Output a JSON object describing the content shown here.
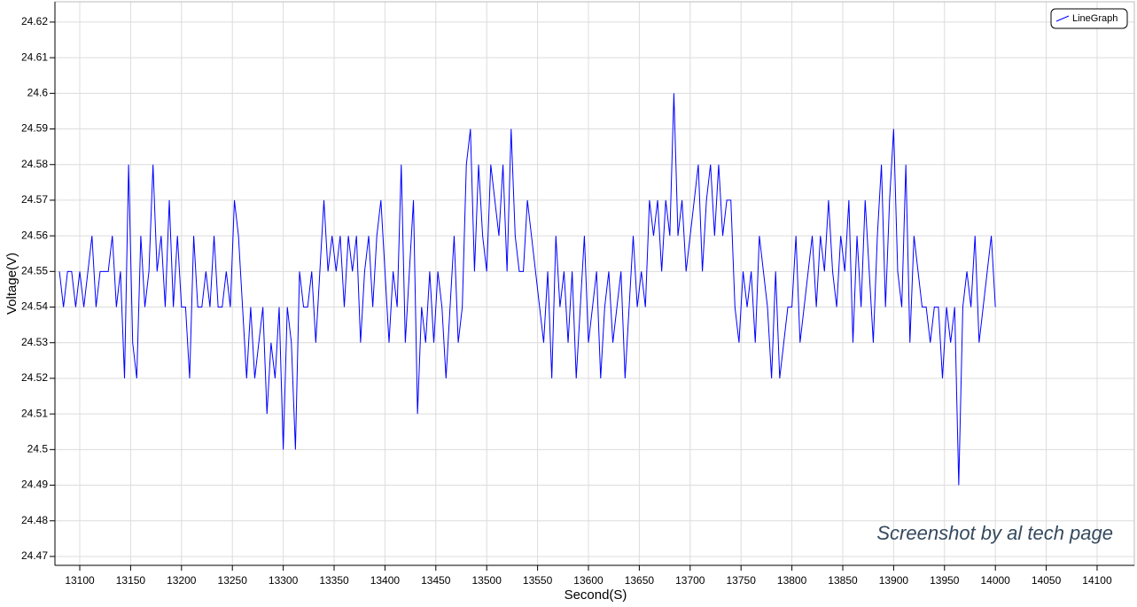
{
  "chart_data": {
    "type": "line",
    "ylabel": "Voltage(V)",
    "xlabel": "Second(S)",
    "annotation": "Screenshot by al tech page",
    "legend": "top-right",
    "grid": true,
    "xlim": [
      13075.6,
      14136.6
    ],
    "ylim": [
      24.4675,
      24.6257
    ],
    "xticks": [
      13100,
      13150,
      13200,
      13250,
      13300,
      13350,
      13400,
      13450,
      13500,
      13550,
      13600,
      13650,
      13700,
      13750,
      13800,
      13850,
      13900,
      13950,
      14000,
      14050,
      14100
    ],
    "yticks": [
      24.47,
      24.48,
      24.49,
      24.5,
      24.51,
      24.52,
      24.53,
      24.54,
      24.55,
      24.56,
      24.57,
      24.58,
      24.59,
      24.6,
      24.61,
      24.62
    ],
    "x": [
      13080,
      13084,
      13088,
      13092,
      13096,
      13100,
      13104,
      13108,
      13112,
      13116,
      13120,
      13124,
      13128,
      13132,
      13136,
      13140,
      13144,
      13148,
      13152,
      13156,
      13160,
      13164,
      13168,
      13172,
      13176,
      13180,
      13184,
      13188,
      13192,
      13196,
      13200,
      13204,
      13208,
      13212,
      13216,
      13220,
      13224,
      13228,
      13232,
      13236,
      13240,
      13244,
      13248,
      13252,
      13256,
      13260,
      13264,
      13268,
      13272,
      13276,
      13280,
      13284,
      13288,
      13292,
      13296,
      13300,
      13304,
      13308,
      13312,
      13316,
      13320,
      13324,
      13328,
      13332,
      13336,
      13340,
      13344,
      13348,
      13352,
      13356,
      13360,
      13364,
      13368,
      13372,
      13376,
      13380,
      13384,
      13388,
      13392,
      13396,
      13400,
      13404,
      13408,
      13412,
      13416,
      13420,
      13424,
      13428,
      13432,
      13436,
      13440,
      13444,
      13448,
      13452,
      13456,
      13460,
      13464,
      13468,
      13472,
      13476,
      13480,
      13484,
      13488,
      13492,
      13496,
      13500,
      13504,
      13508,
      13512,
      13516,
      13520,
      13524,
      13528,
      13532,
      13536,
      13540,
      13544,
      13548,
      13552,
      13556,
      13560,
      13564,
      13568,
      13572,
      13576,
      13580,
      13584,
      13588,
      13592,
      13596,
      13600,
      13604,
      13608,
      13612,
      13616,
      13620,
      13624,
      13628,
      13632,
      13636,
      13640,
      13644,
      13648,
      13652,
      13656,
      13660,
      13664,
      13668,
      13672,
      13676,
      13680,
      13684,
      13688,
      13692,
      13696,
      13700,
      13704,
      13708,
      13712,
      13716,
      13720,
      13724,
      13728,
      13732,
      13736,
      13740,
      13744,
      13748,
      13752,
      13756,
      13760,
      13764,
      13768,
      13772,
      13776,
      13780,
      13784,
      13788,
      13792,
      13796,
      13800,
      13804,
      13808,
      13812,
      13816,
      13820,
      13824,
      13828,
      13832,
      13836,
      13840,
      13844,
      13848,
      13852,
      13856,
      13860,
      13864,
      13868,
      13872,
      13876,
      13880,
      13884,
      13888,
      13892,
      13896,
      13900,
      13904,
      13908,
      13912,
      13916,
      13920,
      13924,
      13928,
      13932,
      13936,
      13940,
      13944,
      13948,
      13952,
      13956,
      13960,
      13964,
      13968,
      13972,
      13976,
      13980,
      13984,
      13988,
      13992,
      13996,
      14000
    ],
    "series": [
      {
        "name": "LineGraph",
        "color": "#0000ff",
        "values": [
          24.55,
          24.54,
          24.55,
          24.55,
          24.54,
          24.55,
          24.54,
          24.55,
          24.56,
          24.54,
          24.55,
          24.55,
          24.55,
          24.56,
          24.54,
          24.55,
          24.52,
          24.58,
          24.53,
          24.52,
          24.56,
          24.54,
          24.55,
          24.58,
          24.55,
          24.56,
          24.54,
          24.57,
          24.54,
          24.56,
          24.54,
          24.54,
          24.52,
          24.56,
          24.54,
          24.54,
          24.55,
          24.54,
          24.56,
          24.54,
          24.54,
          24.55,
          24.54,
          24.57,
          24.56,
          24.54,
          24.52,
          24.54,
          24.52,
          24.53,
          24.54,
          24.51,
          24.53,
          24.52,
          24.54,
          24.5,
          24.54,
          24.53,
          24.5,
          24.55,
          24.54,
          24.54,
          24.55,
          24.53,
          24.55,
          24.57,
          24.55,
          24.56,
          24.55,
          24.56,
          24.54,
          24.56,
          24.55,
          24.56,
          24.53,
          24.55,
          24.56,
          24.54,
          24.56,
          24.57,
          24.55,
          24.53,
          24.55,
          24.54,
          24.58,
          24.53,
          24.55,
          24.57,
          24.51,
          24.54,
          24.53,
          24.55,
          24.53,
          24.55,
          24.54,
          24.52,
          24.54,
          24.56,
          24.53,
          24.54,
          24.58,
          24.59,
          24.55,
          24.58,
          24.56,
          24.55,
          24.58,
          24.57,
          24.56,
          24.58,
          24.55,
          24.59,
          24.56,
          24.55,
          24.55,
          24.57,
          24.56,
          24.55,
          24.54,
          24.53,
          24.55,
          24.52,
          24.56,
          24.54,
          24.55,
          24.53,
          24.55,
          24.52,
          24.54,
          24.56,
          24.53,
          24.54,
          24.55,
          24.52,
          24.54,
          24.55,
          24.53,
          24.54,
          24.55,
          24.52,
          24.54,
          24.56,
          24.54,
          24.55,
          24.54,
          24.57,
          24.56,
          24.57,
          24.55,
          24.57,
          24.56,
          24.6,
          24.56,
          24.57,
          24.55,
          24.56,
          24.57,
          24.58,
          24.55,
          24.57,
          24.58,
          24.56,
          24.58,
          24.56,
          24.57,
          24.57,
          24.54,
          24.53,
          24.55,
          24.54,
          24.55,
          24.53,
          24.56,
          24.55,
          24.54,
          24.52,
          24.55,
          24.52,
          24.53,
          24.54,
          24.54,
          24.56,
          24.53,
          24.54,
          24.55,
          24.56,
          24.54,
          24.56,
          24.55,
          24.57,
          24.55,
          24.54,
          24.56,
          24.55,
          24.57,
          24.53,
          24.56,
          24.54,
          24.57,
          24.55,
          24.53,
          24.56,
          24.58,
          24.54,
          24.57,
          24.59,
          24.55,
          24.54,
          24.58,
          24.53,
          24.56,
          24.55,
          24.54,
          24.54,
          24.53,
          24.54,
          24.54,
          24.52,
          24.54,
          24.53,
          24.54,
          24.49,
          24.54,
          24.55,
          24.54,
          24.56,
          24.53,
          24.54,
          24.55,
          24.56,
          24.54
        ]
      }
    ]
  }
}
